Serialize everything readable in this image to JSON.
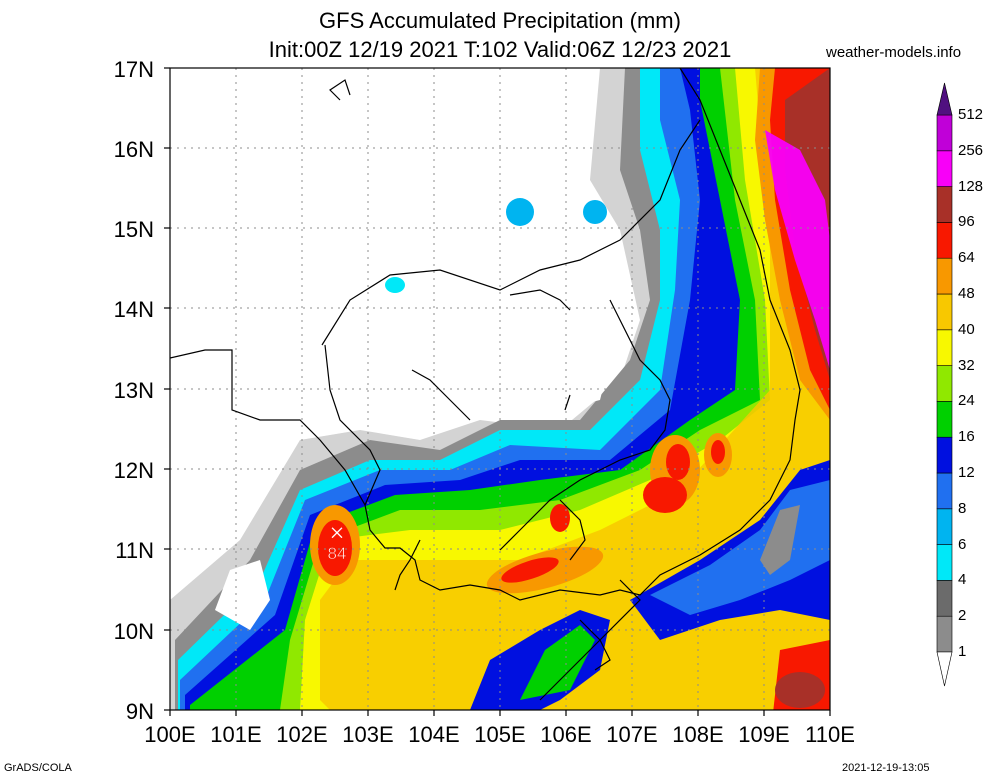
{
  "title_line1": "GFS Accumulated Precipitation (mm)",
  "title_line2": "Init:00Z 12/19 2021 T:102 Valid:06Z 12/23 2021",
  "site": "weather-models.info",
  "lat_labels": [
    "17N",
    "16N",
    "15N",
    "14N",
    "13N",
    "12N",
    "11N",
    "10N",
    "9N"
  ],
  "lon_labels": [
    "100E",
    "101E",
    "102E",
    "103E",
    "104E",
    "105E",
    "106E",
    "107E",
    "108E",
    "109E",
    "110E"
  ],
  "max_marker": {
    "symbol": "✕",
    "value": "84"
  },
  "colorbar": {
    "levels": [
      "1",
      "2",
      "4",
      "6",
      "8",
      "12",
      "16",
      "24",
      "32",
      "40",
      "48",
      "64",
      "96",
      "128",
      "256",
      "512"
    ],
    "colors": [
      "#d3d3d3",
      "#8c8c8c",
      "#6b6b6b",
      "#00e8f8",
      "#00b4f0",
      "#2070f0",
      "#0010e0",
      "#00d000",
      "#90e800",
      "#f8f800",
      "#f8c800",
      "#f89800",
      "#f81800",
      "#a83028",
      "#f800f8",
      "#c000d8",
      "#8000b8",
      "#501080"
    ]
  },
  "footer_left": "GrADS/COLA",
  "footer_right": "2021-12-19-13:05"
}
